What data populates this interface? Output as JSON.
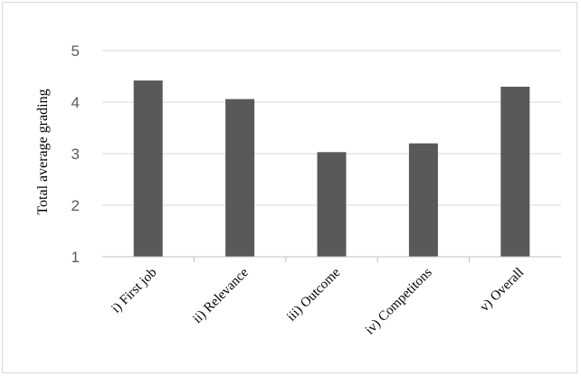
{
  "chart_data": {
    "type": "bar",
    "title": "",
    "xlabel": "",
    "ylabel": "Total average grading",
    "categories": [
      "i) First job",
      "ii) Relevance",
      "iii) Outcome",
      "iv) Competitons",
      "v) Overall"
    ],
    "values": [
      4.42,
      4.06,
      3.03,
      3.2,
      4.3
    ],
    "ylim": [
      1,
      5
    ],
    "yticks": [
      1,
      2,
      3,
      4,
      5
    ],
    "grid": true,
    "legend": "none",
    "bar_color": "#595959",
    "grid_color": "#d9d9d9",
    "axis_color": "#bfbfbf"
  }
}
